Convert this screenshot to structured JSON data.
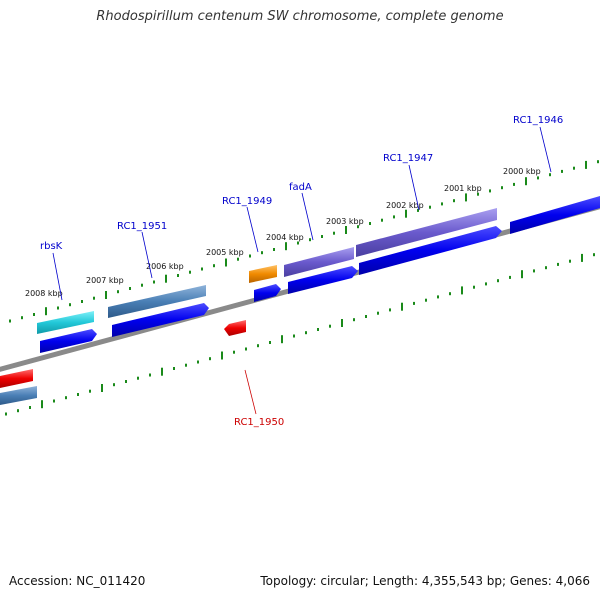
{
  "title": "Rhodospirillum centenum SW chromosome, complete genome",
  "footer": {
    "accession": "Accession: NC_011420",
    "summary": "Topology: circular; Length: 4,355,543 bp; Genes: 4,066"
  },
  "kbp_labels": [
    "2008 kbp",
    "2007 kbp",
    "2006 kbp",
    "2005 kbp",
    "2004 kbp",
    "2003 kbp",
    "2002 kbp",
    "2001 kbp",
    "2000 kbp"
  ],
  "gene_labels": {
    "upper": [
      "rbsK",
      "RC1_1951",
      "RC1_1949",
      "fadA",
      "RC1_1947",
      "RC1_1946"
    ],
    "lower": [
      "RC1_1950"
    ]
  },
  "colors": {
    "backbone": "#888888",
    "ticks": "#1a8a1a",
    "label_blue": "#0000cc",
    "label_red": "#cc0000",
    "gene_blue": "#0000ee",
    "gene_cyan": "#22c8d8",
    "gene_steel": "#4a7fb5",
    "gene_purple": "#6a5acd",
    "gene_orange": "#f08a00",
    "gene_red": "#ee0000"
  }
}
